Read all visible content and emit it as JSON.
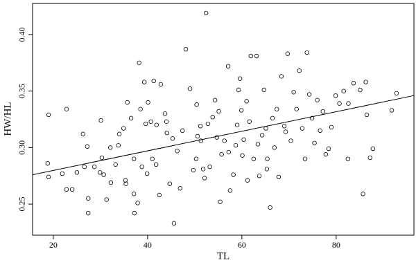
{
  "chart_data": {
    "type": "scatter",
    "x_label": "TL",
    "y_label": "HW/HL",
    "xlim": [
      15.6,
      96.5
    ],
    "ylim": [
      0.2225,
      0.4275
    ],
    "xticks": [
      20,
      40,
      60,
      80
    ],
    "yticks": [
      0.25,
      {
        "value": 0.3,
        "label": "0.30"
      },
      0.35,
      {
        "value": 0.4,
        "label": "0.40"
      }
    ],
    "color": "#000000",
    "fit_line": {
      "x": [
        15.6,
        96.5
      ],
      "y": [
        0.276,
        0.346
      ]
    },
    "x": [
      18.8,
      19.0,
      19.0,
      21.9,
      22.8,
      22.8,
      24.0,
      26.3,
      26.6,
      27.2,
      27.4,
      27.4,
      28.7,
      29.9,
      30.1,
      30.3,
      30.7,
      31.3,
      32.1,
      33.2,
      33.8,
      34.0,
      35.3,
      35.4,
      35.7,
      36.5,
      37.1,
      37.1,
      37.2,
      37.9,
      38.2,
      38.5,
      38.8,
      39.3,
      39.6,
      39.9,
      40.1,
      40.7,
      41.0,
      41.3,
      41.8,
      42.5,
      42.8,
      43.7,
      44.0,
      44.1,
      44.7,
      45.6,
      46.3,
      46.9,
      48.1,
      49.0,
      49.7,
      50.3,
      50.4,
      50.6,
      51.2,
      51.3,
      51.8,
      52.1,
      52.4,
      52.8,
      53.2,
      53.8,
      54.3,
      54.7,
      55.1,
      55.4,
      55.7,
      56.3,
      57.1,
      57.5,
      58.2,
      58.7,
      59.0,
      59.3,
      59.9,
      60.1,
      60.4,
      61.0,
      61.6,
      61.9,
      62.5,
      63.1,
      63.4,
      63.7,
      64.3,
      64.7,
      65.1,
      65.4,
      66.0,
      66.5,
      66.9,
      67.4,
      67.8,
      68.4,
      69.0,
      69.3,
      69.7,
      70.4,
      71.0,
      71.6,
      72.2,
      72.8,
      73.4,
      73.8,
      74.3,
      74.9,
      75.4,
      76.0,
      76.6,
      77.2,
      77.8,
      78.4,
      79.0,
      79.9,
      80.7,
      81.6,
      82.6,
      83.7,
      85.1,
      85.7,
      86.5,
      87.2,
      87.8,
      86.3,
      91.8,
      92.8,
      59.6,
      57.2,
      47.4,
      41.9,
      34.9,
      32.2,
      25.0,
      45.3,
      65.3,
      61.2,
      82.5
    ],
    "y": [
      0.286,
      0.329,
      0.274,
      0.277,
      0.334,
      0.263,
      0.263,
      0.312,
      0.283,
      0.301,
      0.242,
      0.255,
      0.283,
      0.278,
      0.324,
      0.291,
      0.276,
      0.254,
      0.3,
      0.285,
      0.302,
      0.312,
      0.271,
      0.268,
      0.34,
      0.326,
      0.259,
      0.29,
      0.242,
      0.251,
      0.375,
      0.334,
      0.283,
      0.358,
      0.321,
      0.277,
      0.34,
      0.323,
      0.29,
      0.359,
      0.285,
      0.258,
      0.356,
      0.33,
      0.323,
      0.313,
      0.268,
      0.233,
      0.297,
      0.264,
      0.387,
      0.352,
      0.28,
      0.29,
      0.338,
      0.31,
      0.319,
      0.306,
      0.281,
      0.273,
      0.419,
      0.321,
      0.283,
      0.327,
      0.342,
      0.309,
      0.332,
      0.252,
      0.294,
      0.306,
      0.372,
      0.262,
      0.276,
      0.302,
      0.32,
      0.351,
      0.333,
      0.293,
      0.307,
      0.341,
      0.323,
      0.381,
      0.29,
      0.381,
      0.303,
      0.275,
      0.311,
      0.351,
      0.317,
      0.29,
      0.247,
      0.326,
      0.3,
      0.334,
      0.274,
      0.363,
      0.319,
      0.314,
      0.383,
      0.306,
      0.349,
      0.334,
      0.368,
      0.317,
      0.29,
      0.384,
      0.347,
      0.326,
      0.304,
      0.342,
      0.315,
      0.332,
      0.294,
      0.299,
      0.318,
      0.346,
      0.339,
      0.35,
      0.339,
      0.357,
      0.351,
      0.259,
      0.329,
      0.291,
      0.299,
      0.358,
      0.333,
      0.348,
      0.361,
      0.296,
      0.315,
      0.32,
      0.317,
      0.269,
      0.278,
      0.308,
      0.281,
      0.271,
      0.29
    ]
  }
}
